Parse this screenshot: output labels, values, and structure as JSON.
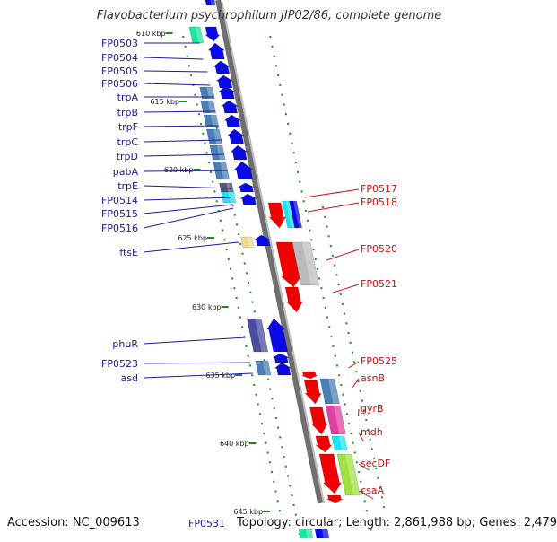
{
  "title": "Flavobacterium psychrophilum JIP02/86, complete genome",
  "footer": {
    "accession": "Accession: NC_009613",
    "topology": "Topology: circular; Length: 2,861,988 bp; Genes: 2,479",
    "partial_gene": "FP0531"
  },
  "ticks": [
    "610 kbp",
    "615 kbp",
    "620 kbp",
    "625 kbp",
    "630 kbp",
    "635 kbp",
    "640 kbp",
    "645 kbp"
  ],
  "left_labels": [
    "FP0503",
    "FP0504",
    "FP0505",
    "FP0506",
    "trpA",
    "trpB",
    "trpF",
    "trpC",
    "trpD",
    "pabA",
    "trpE",
    "FP0514",
    "FP0515",
    "FP0516",
    "ftsE",
    "phuR",
    "FP0523",
    "asd"
  ],
  "right_labels": [
    "FP0517",
    "FP0518",
    "FP0520",
    "FP0521",
    "FP0525",
    "asnB",
    "gyrB",
    "mdh",
    "secDF",
    "csaA"
  ],
  "colors": {
    "left_label": "#1c1c9a",
    "right_label": "#cc1111",
    "forward": "#0a0ae6",
    "reverse": "#f00000",
    "axis": "#808080",
    "tick": "#228822"
  }
}
